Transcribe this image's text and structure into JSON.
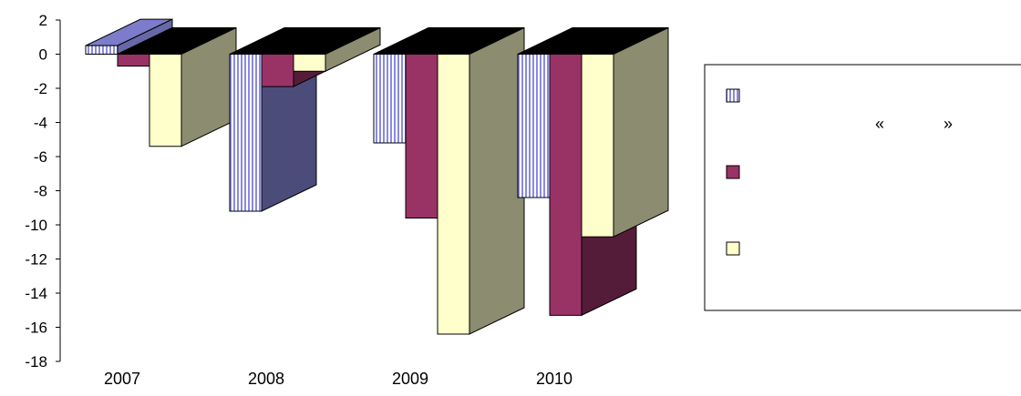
{
  "chart_data": {
    "type": "bar",
    "style": "3d-clustered-column",
    "categories": [
      "2007",
      "2008",
      "2009",
      "2010"
    ],
    "ylim": [
      -18,
      2
    ],
    "yticks": [
      2,
      0,
      -2,
      -4,
      -6,
      -8,
      -10,
      -12,
      -14,
      -16,
      -18
    ],
    "series": [
      {
        "values": [
          0.5,
          -9.2,
          -5.2,
          -8.4
        ],
        "color": "#8a8ae0",
        "pattern": "vertical-stripes"
      },
      {
        "values": [
          -0.7,
          -1.9,
          -9.6,
          -15.3
        ],
        "color": "#993366"
      },
      {
        "values": [
          -5.4,
          -1.0,
          -16.4,
          -10.7
        ],
        "color": "#ffffcc"
      }
    ],
    "legend": {
      "position": "right",
      "entries": [
        {
          "series": 0,
          "text": ""
        },
        {
          "series": 1,
          "text": ""
        },
        {
          "series": 2,
          "text": ""
        }
      ],
      "stray_text": [
        "«",
        "»"
      ]
    },
    "grid": false
  }
}
